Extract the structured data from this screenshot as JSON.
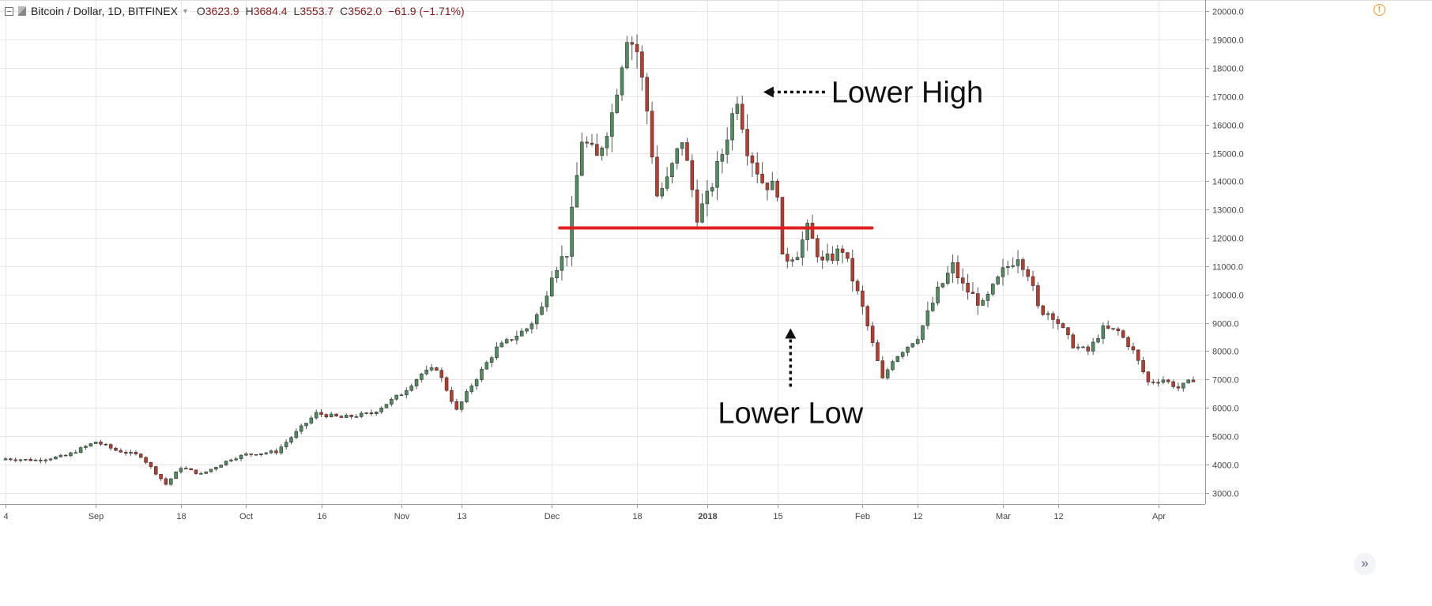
{
  "legend": {
    "symbol": "Bitcoin / Dollar, 1D, BITFINEX",
    "caret": "▼",
    "open_label": "O",
    "open": "3623.9",
    "high_label": "H",
    "high": "3684.4",
    "low_label": "L",
    "low": "3553.7",
    "close_label": "C",
    "close": "3562.0",
    "change": "−61.9 (−1.71%)"
  },
  "icons": {
    "warning": "!",
    "scroll_right": "»"
  },
  "colors": {
    "up": "#4e8d5c",
    "down": "#c0392b",
    "wick": "#555555",
    "grid": "#e6e6e6",
    "support_line": "#e02020"
  },
  "chart_data": {
    "type": "candlestick",
    "title": "Bitcoin / Dollar, 1D, BITFINEX",
    "ylim": [
      2600,
      20400
    ],
    "x_range": [
      "2017-08-14",
      "2018-04-08"
    ],
    "grid": true,
    "y_ticks": [
      {
        "value": 3000,
        "label": "3000.0"
      },
      {
        "value": 4000,
        "label": "4000.0"
      },
      {
        "value": 5000,
        "label": "5000.0"
      },
      {
        "value": 6000,
        "label": "6000.0"
      },
      {
        "value": 7000,
        "label": "7000.0"
      },
      {
        "value": 8000,
        "label": "8000.0"
      },
      {
        "value": 9000,
        "label": "9000.0"
      },
      {
        "value": 10000,
        "label": "10000.0"
      },
      {
        "value": 11000,
        "label": "11000.0"
      },
      {
        "value": 12000,
        "label": "12000.0"
      },
      {
        "value": 13000,
        "label": "13000.0"
      },
      {
        "value": 14000,
        "label": "14000.0"
      },
      {
        "value": 15000,
        "label": "15000.0"
      },
      {
        "value": 16000,
        "label": "16000.0"
      },
      {
        "value": 17000,
        "label": "17000.0"
      },
      {
        "value": 18000,
        "label": "18000.0"
      },
      {
        "value": 19000,
        "label": "19000.0"
      },
      {
        "value": 20000,
        "label": "20000.0"
      }
    ],
    "x_ticks": [
      {
        "date": "2017-08-14",
        "label": "4"
      },
      {
        "date": "2017-09-01",
        "label": "Sep"
      },
      {
        "date": "2017-09-18",
        "label": "18"
      },
      {
        "date": "2017-10-01",
        "label": "Oct"
      },
      {
        "date": "2017-10-16",
        "label": "16"
      },
      {
        "date": "2017-11-01",
        "label": "Nov"
      },
      {
        "date": "2017-11-13",
        "label": "13"
      },
      {
        "date": "2017-12-01",
        "label": "Dec"
      },
      {
        "date": "2017-12-18",
        "label": "18"
      },
      {
        "date": "2018-01-01",
        "label": "2018",
        "bold": true
      },
      {
        "date": "2018-01-15",
        "label": "15"
      },
      {
        "date": "2018-02-01",
        "label": "Feb"
      },
      {
        "date": "2018-02-12",
        "label": "12"
      },
      {
        "date": "2018-03-01",
        "label": "Mar"
      },
      {
        "date": "2018-03-12",
        "label": "12"
      },
      {
        "date": "2018-04-01",
        "label": "Apr"
      }
    ],
    "anchors": [
      [
        "2017-08-14",
        4200
      ],
      [
        "2017-08-20",
        4150
      ],
      [
        "2017-08-26",
        4300
      ],
      [
        "2017-09-01",
        4800
      ],
      [
        "2017-09-05",
        4500
      ],
      [
        "2017-09-10",
        4300
      ],
      [
        "2017-09-15",
        3300
      ],
      [
        "2017-09-18",
        3900
      ],
      [
        "2017-09-22",
        3650
      ],
      [
        "2017-09-28",
        4200
      ],
      [
        "2017-10-01",
        4350
      ],
      [
        "2017-10-07",
        4450
      ],
      [
        "2017-10-12",
        5300
      ],
      [
        "2017-10-15",
        5800
      ],
      [
        "2017-10-20",
        5650
      ],
      [
        "2017-10-26",
        5800
      ],
      [
        "2017-11-01",
        6500
      ],
      [
        "2017-11-05",
        7200
      ],
      [
        "2017-11-08",
        7400
      ],
      [
        "2017-11-12",
        5900
      ],
      [
        "2017-11-15",
        6800
      ],
      [
        "2017-11-20",
        8100
      ],
      [
        "2017-11-26",
        8800
      ],
      [
        "2017-11-29",
        9500
      ],
      [
        "2017-12-01",
        10800
      ],
      [
        "2017-12-04",
        11500
      ],
      [
        "2017-12-07",
        15500
      ],
      [
        "2017-12-10",
        14800
      ],
      [
        "2017-12-13",
        16400
      ],
      [
        "2017-12-16",
        19200
      ],
      [
        "2017-12-18",
        18600
      ],
      [
        "2017-12-20",
        16500
      ],
      [
        "2017-12-22",
        13500
      ],
      [
        "2017-12-24",
        14000
      ],
      [
        "2017-12-27",
        15500
      ],
      [
        "2017-12-30",
        12800
      ],
      [
        "2018-01-01",
        13400
      ],
      [
        "2018-01-04",
        15000
      ],
      [
        "2018-01-07",
        17000
      ],
      [
        "2018-01-09",
        15200
      ],
      [
        "2018-01-12",
        14000
      ],
      [
        "2018-01-15",
        13700
      ],
      [
        "2018-01-16",
        11200
      ],
      [
        "2018-01-19",
        11500
      ],
      [
        "2018-01-21",
        12300
      ],
      [
        "2018-01-24",
        11100
      ],
      [
        "2018-01-28",
        11600
      ],
      [
        "2018-02-01",
        9500
      ],
      [
        "2018-02-05",
        7000
      ],
      [
        "2018-02-07",
        7700
      ],
      [
        "2018-02-12",
        8500
      ],
      [
        "2018-02-16",
        10100
      ],
      [
        "2018-02-19",
        11000
      ],
      [
        "2018-02-21",
        10300
      ],
      [
        "2018-02-25",
        9600
      ],
      [
        "2018-03-01",
        10800
      ],
      [
        "2018-03-04",
        11400
      ],
      [
        "2018-03-06",
        10800
      ],
      [
        "2018-03-08",
        9500
      ],
      [
        "2018-03-11",
        9300
      ],
      [
        "2018-03-15",
        8200
      ],
      [
        "2018-03-18",
        8000
      ],
      [
        "2018-03-21",
        8800
      ],
      [
        "2018-03-24",
        8700
      ],
      [
        "2018-03-27",
        8000
      ],
      [
        "2018-03-30",
        6900
      ],
      [
        "2018-04-02",
        7000
      ],
      [
        "2018-04-05",
        6700
      ],
      [
        "2018-04-08",
        7000
      ]
    ],
    "support_line": {
      "value": 12350,
      "from": "2017-12-01",
      "to": "2018-02-01"
    },
    "annotations": [
      {
        "text": "Lower High",
        "target_date": "2018-01-07",
        "target_value": 17150
      },
      {
        "text": "Lower Low",
        "target_date": "2018-01-17",
        "target_value": 9200
      }
    ]
  }
}
